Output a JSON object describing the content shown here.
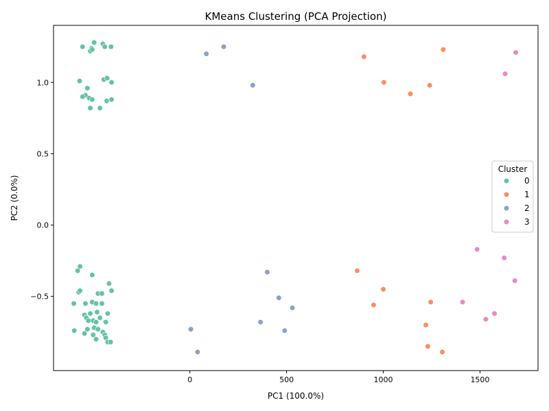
{
  "chart_data": {
    "type": "scatter",
    "title": "KMeans Clustering (PCA Projection)",
    "xlabel": "PC1 (100.0%)",
    "ylabel": "PC2 (0.0%)",
    "xlim": [
      -705,
      1800
    ],
    "ylim": [
      -1.02,
      1.4
    ],
    "x_ticks": [
      0,
      500,
      1000,
      1500
    ],
    "x_tick_labels": [
      "0",
      "500",
      "1000",
      "1500"
    ],
    "y_ticks": [
      -0.5,
      0.0,
      0.5,
      1.0
    ],
    "y_tick_labels": [
      "−0.5",
      "0.0",
      "0.5",
      "1.0"
    ],
    "grid": false,
    "legend": {
      "title": "Cluster",
      "placement": "center-right"
    },
    "series": [
      {
        "name": "0",
        "color": "#66c2a5",
        "points": [
          [
            -555,
            1.25
          ],
          [
            -495,
            1.28
          ],
          [
            -508,
            1.24
          ],
          [
            -450,
            1.27
          ],
          [
            -440,
            1.25
          ],
          [
            -408,
            1.25
          ],
          [
            -515,
            1.22
          ],
          [
            -505,
            1.23
          ],
          [
            -570,
            1.01
          ],
          [
            -445,
            1.02
          ],
          [
            -428,
            1.03
          ],
          [
            -405,
            1.0
          ],
          [
            -530,
            0.96
          ],
          [
            -540,
            0.91
          ],
          [
            -555,
            0.9
          ],
          [
            -520,
            0.89
          ],
          [
            -505,
            0.88
          ],
          [
            -430,
            0.87
          ],
          [
            -405,
            0.88
          ],
          [
            -515,
            0.82
          ],
          [
            -465,
            0.82
          ],
          [
            -568,
            -0.29
          ],
          [
            -580,
            -0.32
          ],
          [
            -505,
            -0.35
          ],
          [
            -418,
            -0.41
          ],
          [
            -405,
            -0.46
          ],
          [
            -575,
            -0.47
          ],
          [
            -568,
            -0.46
          ],
          [
            -475,
            -0.48
          ],
          [
            -455,
            -0.48
          ],
          [
            -600,
            -0.55
          ],
          [
            -540,
            -0.55
          ],
          [
            -505,
            -0.54
          ],
          [
            -485,
            -0.55
          ],
          [
            -455,
            -0.55
          ],
          [
            -480,
            -0.61
          ],
          [
            -425,
            -0.62
          ],
          [
            -515,
            -0.62
          ],
          [
            -545,
            -0.63
          ],
          [
            -535,
            -0.65
          ],
          [
            -465,
            -0.65
          ],
          [
            -525,
            -0.67
          ],
          [
            -500,
            -0.67
          ],
          [
            -485,
            -0.68
          ],
          [
            -435,
            -0.68
          ],
          [
            -530,
            -0.73
          ],
          [
            -495,
            -0.72
          ],
          [
            -475,
            -0.73
          ],
          [
            -450,
            -0.75
          ],
          [
            -598,
            -0.74
          ],
          [
            -545,
            -0.76
          ],
          [
            -500,
            -0.77
          ],
          [
            -440,
            -0.77
          ],
          [
            -435,
            -0.79
          ],
          [
            -485,
            -0.8
          ],
          [
            -425,
            -0.82
          ],
          [
            -410,
            -0.82
          ]
        ]
      },
      {
        "name": "1",
        "color": "#fc8d62",
        "points": [
          [
            900,
            1.18
          ],
          [
            1310,
            1.23
          ],
          [
            1003,
            1.0
          ],
          [
            1240,
            0.98
          ],
          [
            1140,
            0.92
          ],
          [
            865,
            -0.32
          ],
          [
            1000,
            -0.45
          ],
          [
            1245,
            -0.54
          ],
          [
            950,
            -0.56
          ],
          [
            1220,
            -0.7
          ],
          [
            1230,
            -0.85
          ],
          [
            1305,
            -0.89
          ]
        ]
      },
      {
        "name": "2",
        "color": "#8da0cb",
        "points": [
          [
            85,
            1.2
          ],
          [
            175,
            1.25
          ],
          [
            325,
            0.98
          ],
          [
            400,
            -0.33
          ],
          [
            460,
            -0.51
          ],
          [
            530,
            -0.58
          ],
          [
            365,
            -0.68
          ],
          [
            5,
            -0.73
          ],
          [
            490,
            -0.74
          ],
          [
            40,
            -0.89
          ]
        ]
      },
      {
        "name": "3",
        "color": "#e78ac3",
        "points": [
          [
            1685,
            1.21
          ],
          [
            1630,
            1.06
          ],
          [
            1485,
            -0.17
          ],
          [
            1625,
            -0.23
          ],
          [
            1680,
            -0.39
          ],
          [
            1410,
            -0.54
          ],
          [
            1575,
            -0.62
          ],
          [
            1530,
            -0.66
          ]
        ]
      }
    ]
  }
}
